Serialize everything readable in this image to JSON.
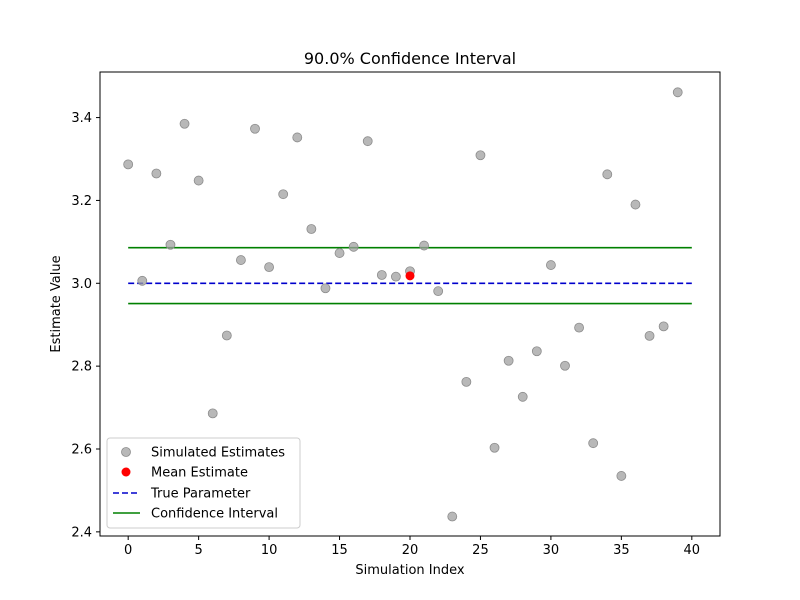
{
  "chart_data": {
    "type": "scatter",
    "title": "90.0% Confidence Interval",
    "xlabel": "Simulation Index",
    "ylabel": "Estimate Value",
    "xlim": [
      -2,
      42
    ],
    "ylim": [
      2.39,
      3.51
    ],
    "xticks": [
      0,
      5,
      10,
      15,
      20,
      25,
      30,
      35,
      40
    ],
    "yticks": [
      2.4,
      2.6,
      2.8,
      3.0,
      3.2,
      3.4
    ],
    "ytick_labels": [
      "2.4",
      "2.6",
      "2.8",
      "3.0",
      "3.2",
      "3.4"
    ],
    "grid": false,
    "legend_position": "lower-left",
    "series": [
      {
        "name": "Simulated Estimates",
        "kind": "scatter",
        "color": "#a0a0a0",
        "x": [
          0,
          1,
          2,
          3,
          4,
          5,
          6,
          7,
          8,
          9,
          10,
          11,
          12,
          13,
          14,
          15,
          16,
          17,
          18,
          19,
          20,
          21,
          22,
          23,
          24,
          25,
          26,
          27,
          28,
          29,
          30,
          31,
          32,
          33,
          34,
          35,
          36,
          37,
          38,
          39
        ],
        "y": [
          3.287,
          3.006,
          3.265,
          3.093,
          3.385,
          3.248,
          2.686,
          2.874,
          3.056,
          3.373,
          3.039,
          3.215,
          3.352,
          3.131,
          2.988,
          3.073,
          3.088,
          3.343,
          3.02,
          3.016,
          3.029,
          3.091,
          2.981,
          2.437,
          2.762,
          3.309,
          2.603,
          2.813,
          2.726,
          2.836,
          3.044,
          2.801,
          2.893,
          2.614,
          3.263,
          2.535,
          3.19,
          2.873,
          2.896,
          3.461
        ]
      },
      {
        "name": "Mean Estimate",
        "kind": "scatter",
        "color": "#ff0000",
        "x": [
          20
        ],
        "y": [
          3.018
        ]
      },
      {
        "name": "True Parameter",
        "kind": "hline-dashed",
        "color": "#0000cc",
        "y": 3.0,
        "x_range": [
          0,
          40
        ]
      },
      {
        "name": "Confidence Interval",
        "kind": "hline",
        "color": "#008000",
        "y_values": [
          3.086,
          2.951
        ],
        "x_range": [
          0,
          40
        ]
      }
    ]
  }
}
